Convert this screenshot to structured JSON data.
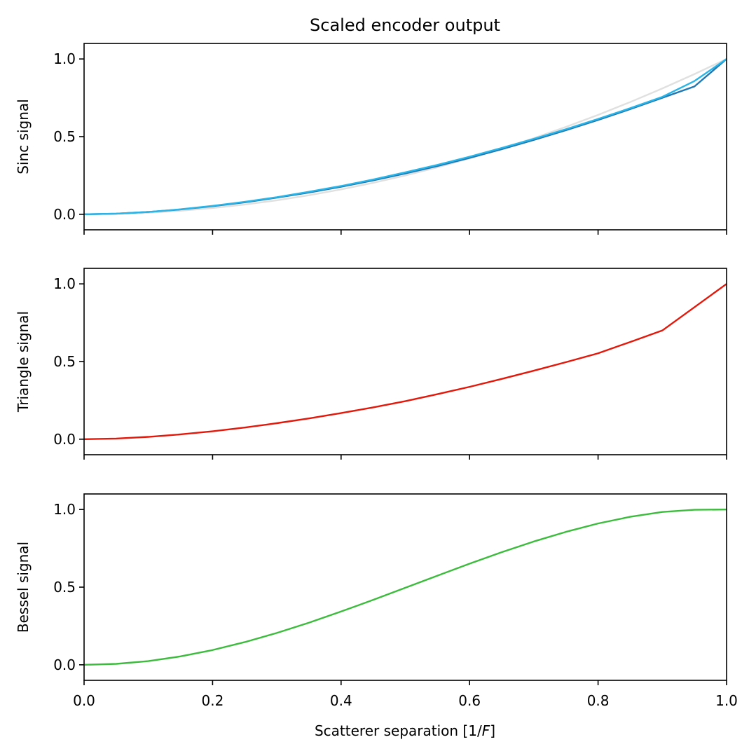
{
  "chart_data": {
    "type": "line",
    "title": "Scaled encoder output",
    "xlabel_prefix": "Scatterer separation [1/",
    "xlabel_italic": "F",
    "xlabel_suffix": "]",
    "xlim": [
      0.0,
      1.0
    ],
    "xticks": [
      "0.0",
      "0.2",
      "0.4",
      "0.6",
      "0.8",
      "1.0"
    ],
    "x": [
      0.0,
      0.05,
      0.1,
      0.15,
      0.2,
      0.25,
      0.3,
      0.35,
      0.4,
      0.45,
      0.5,
      0.55,
      0.6,
      0.65,
      0.7,
      0.75,
      0.8,
      0.85,
      0.9,
      0.95,
      1.0
    ],
    "panels": [
      {
        "ylabel": "Sinc signal",
        "ylim": [
          -0.1,
          1.1
        ],
        "yticks": [
          "0.0",
          "0.5",
          "1.0"
        ],
        "series": [
          {
            "color": "#e0e0e0",
            "values": [
              0.0,
              0.0025,
              0.01,
              0.0225,
              0.04,
              0.0625,
              0.09,
              0.1225,
              0.16,
              0.2025,
              0.25,
              0.3025,
              0.36,
              0.4225,
              0.49,
              0.5625,
              0.64,
              0.7225,
              0.81,
              0.9025,
              1.0
            ]
          },
          {
            "color": "#1f77b4",
            "values": [
              0.0,
              0.004,
              0.015,
              0.031,
              0.052,
              0.077,
              0.107,
              0.14,
              0.177,
              0.218,
              0.263,
              0.311,
              0.363,
              0.419,
              0.479,
              0.541,
              0.607,
              0.677,
              0.75,
              0.823,
              1.0
            ]
          },
          {
            "color": "#29b5e8",
            "values": [
              0.0,
              0.004,
              0.015,
              0.032,
              0.054,
              0.08,
              0.11,
              0.145,
              0.182,
              0.224,
              0.27,
              0.318,
              0.371,
              0.427,
              0.486,
              0.548,
              0.614,
              0.683,
              0.756,
              0.858,
              1.0
            ]
          }
        ]
      },
      {
        "ylabel": "Triangle signal",
        "ylim": [
          -0.1,
          1.1
        ],
        "yticks": [
          "0.0",
          "0.5",
          "1.0"
        ],
        "series": [
          {
            "color": "#e3170a",
            "values": [
              0.0,
              0.004,
              0.015,
              0.031,
              0.051,
              0.075,
              0.103,
              0.134,
              0.168,
              0.205,
              0.245,
              0.29,
              0.337,
              0.388,
              0.441,
              0.496,
              0.553,
              0.626,
              0.7,
              0.85,
              1.0
            ]
          }
        ]
      },
      {
        "ylabel": "Bessel signal",
        "ylim": [
          -0.1,
          1.1
        ],
        "yticks": [
          "0.0",
          "0.5",
          "1.0"
        ],
        "series": [
          {
            "color": "#3cbc3c",
            "values": [
              0.0,
              0.006,
              0.024,
              0.054,
              0.095,
              0.146,
              0.205,
              0.271,
              0.343,
              0.418,
              0.496,
              0.574,
              0.651,
              0.725,
              0.794,
              0.856,
              0.91,
              0.953,
              0.984,
              0.998,
              1.0
            ]
          }
        ]
      }
    ]
  }
}
